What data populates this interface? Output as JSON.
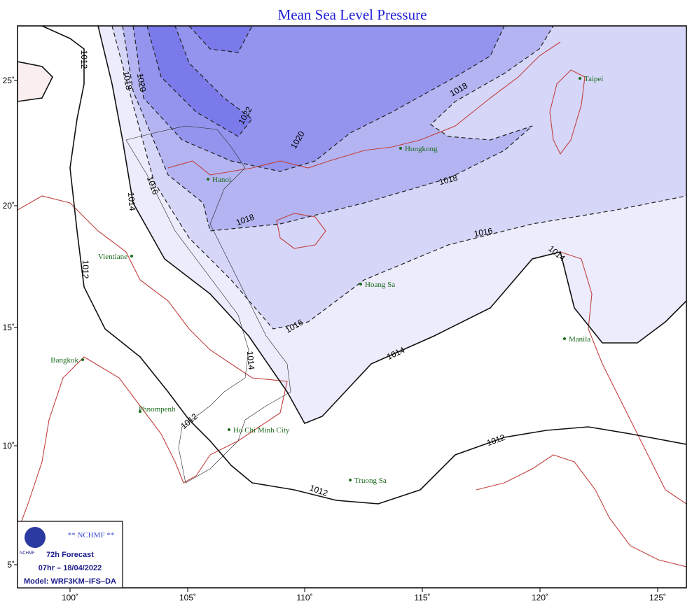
{
  "title": "Mean Sea Level Pressure",
  "lon_ticks": [
    "100˚",
    "105˚",
    "110˚",
    "115˚",
    "120˚",
    "125˚"
  ],
  "lat_ticks": [
    "25˚",
    "20˚",
    "15˚",
    "10˚",
    "5˚"
  ],
  "places": [
    "Taipei",
    "Hongkong",
    "Hanoi",
    "Vientiane",
    "Hoang Sa",
    "Manila",
    "Bangkok",
    "Phnompenh",
    "Ho Chi Minh City",
    "Truong Sa"
  ],
  "contour_labels": [
    "1012",
    "1018",
    "1020",
    "1022",
    "1020",
    "1018",
    "1018",
    "1018",
    "1016",
    "1014",
    "1012",
    "1016",
    "1016",
    "1014",
    "1014",
    "1014",
    "1012",
    "1012",
    "1012"
  ],
  "legend": {
    "org": "** NCHMF **",
    "logo": "NCHMF",
    "forecast": "72h Forecast",
    "time": "07hr – 18/04/2022",
    "model": "Model: WRF3KM–IFS–DA"
  }
}
